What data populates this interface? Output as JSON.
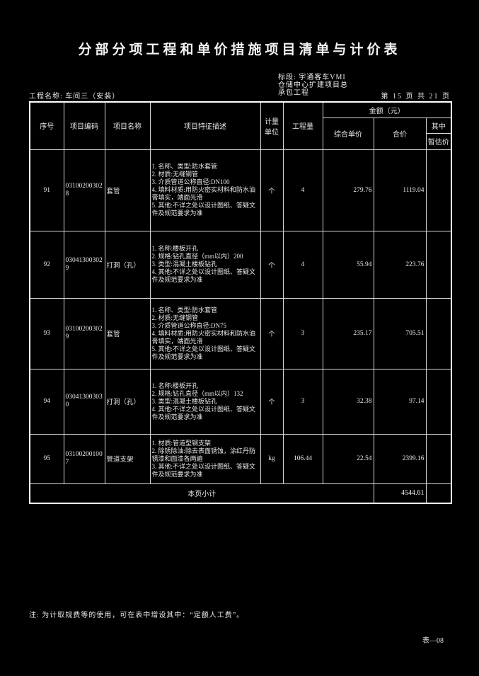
{
  "page": {
    "title": "分部分项工程和单价措施项目清单与计价表",
    "project_name": "工程名称: 车间三（安装）",
    "section_lines": [
      "标段: 宇通客车VMI",
      "仓储中心扩建项目总",
      "承包工程"
    ],
    "page_info": "第 15 页  共 21 页",
    "note": "注: 为计取规费等的使用，可在表中增设其中：“定额人工费”。",
    "form_code": "表—08"
  },
  "table": {
    "headers": {
      "seq": "序号",
      "code": "项目编码",
      "name": "项目名称",
      "features": "项目特征描述",
      "unit": "计量单位",
      "quantity": "工程量",
      "amount_group": "金额（元）",
      "unit_price": "综合单价",
      "total_price": "合价",
      "among": "其中",
      "provisional": "暂估价"
    },
    "rows": [
      {
        "seq": "91",
        "code": "031002003028",
        "name": "套管",
        "features": [
          "1. 名称、类型:防水套管",
          "2. 材质:无缝钢管",
          "3. 介质管道公称直径:DN100",
          "4. 填料材质:用防火密实材料和防水油膏填实，端面光滑",
          "5. 其他:不详之处以设计图纸、答疑文件及规范要求为准"
        ],
        "unit": "个",
        "quantity": "4",
        "unit_price": "279.76",
        "total_price": "1119.04",
        "provisional": ""
      },
      {
        "seq": "92",
        "code": "030413003029",
        "name": "打洞（孔）",
        "features": [
          "1. 名称:楼板开孔",
          "2. 规格:钻孔直径（mm以内）200",
          "3. 类型:混凝土楼板钻孔",
          "4. 其他:不详之处以设计图纸、答疑文件及规范要求为准"
        ],
        "unit": "个",
        "quantity": "4",
        "unit_price": "55.94",
        "total_price": "223.76",
        "provisional": ""
      },
      {
        "seq": "93",
        "code": "031002003029",
        "name": "套管",
        "features": [
          "1. 名称、类型:防水套管",
          "2. 材质:无缝钢管",
          "3. 介质管道公称直径:DN75",
          "4. 填料材质:用防火密实材料和防水油膏填实，端面光滑",
          "5. 其他:不详之处以设计图纸、答疑文件及规范要求为准"
        ],
        "unit": "个",
        "quantity": "3",
        "unit_price": "235.17",
        "total_price": "705.51",
        "provisional": ""
      },
      {
        "seq": "94",
        "code": "030413003030",
        "name": "打洞（孔）",
        "features": [
          "1. 名称:楼板开孔",
          "2. 规格:钻孔直径（mm以内）132",
          "3. 类型:混凝土楼板钻孔",
          "4. 其他:不详之处以设计图纸、答疑文件及规范要求为准"
        ],
        "unit": "个",
        "quantity": "3",
        "unit_price": "32.38",
        "total_price": "97.14",
        "provisional": ""
      },
      {
        "seq": "95",
        "code": "031002001007",
        "name": "管道支架",
        "features": [
          "1. 材质:管道型钢支架",
          "2. 除锈除油:除去表面锈蚀，涂红丹防锈漆和面漆各两遍",
          "3. 其他:不详之处以设计图纸、答疑文件及规范要求为准"
        ],
        "unit": "kg",
        "quantity": "106.44",
        "unit_price": "22.54",
        "total_price": "2399.16",
        "provisional": ""
      }
    ],
    "subtotal": {
      "label": "本页小计",
      "total_price": "4544.61",
      "provisional": ""
    }
  },
  "colors": {
    "background": "#000000",
    "text": "#e9e9e9",
    "border": "#ffffff"
  }
}
